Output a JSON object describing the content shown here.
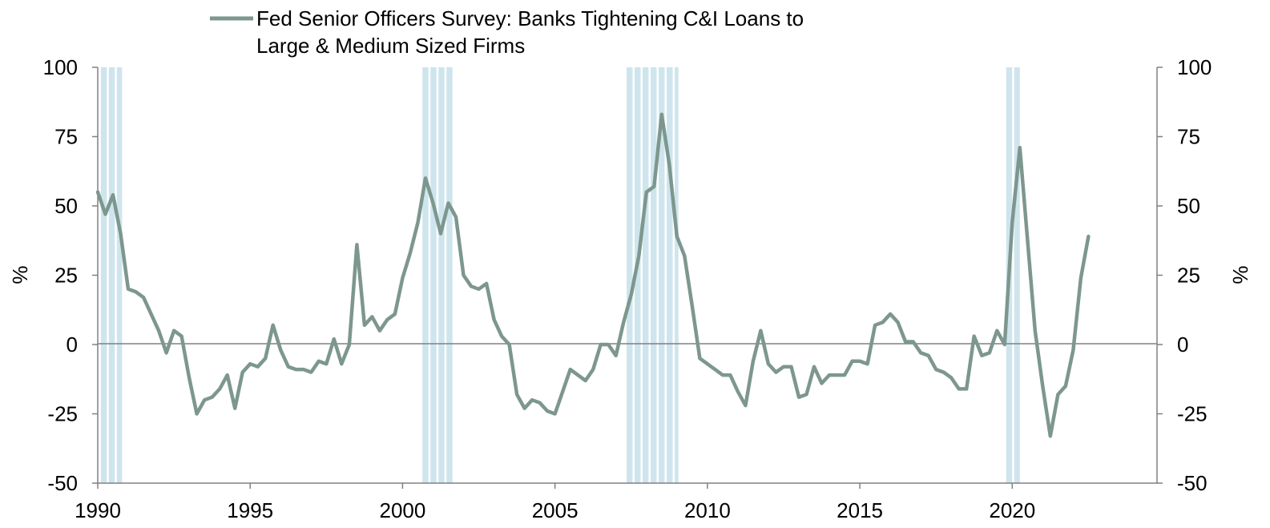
{
  "chart_data": {
    "type": "line",
    "title": "",
    "legend": {
      "entries": [
        "Fed Senior Officers Survey: Banks Tightening C&I Loans to",
        "Large & Medium Sized Firms"
      ],
      "placement": "top"
    },
    "left_axis": {
      "label": "%",
      "ticks": [
        "100",
        "75",
        "50",
        "25",
        "0",
        "-25",
        "-50"
      ]
    },
    "right_axis": {
      "label": "%",
      "ticks": [
        "100",
        "75",
        "50",
        "25",
        "0",
        "-25",
        "-50"
      ]
    },
    "xticks": [
      "1990",
      "1995",
      "2000",
      "2005",
      "2010",
      "2015",
      "2020"
    ],
    "xlim": [
      1990,
      2024.75
    ],
    "ylim": [
      -50,
      100
    ],
    "grid": false,
    "zero_line": true,
    "colors": {
      "series": "#7d978e",
      "shading": "#cfe5ee",
      "axis": "#808080"
    },
    "recessions": [
      {
        "start": 1990.1,
        "end": 1990.8
      },
      {
        "start": 2000.65,
        "end": 2001.65
      },
      {
        "start": 2007.35,
        "end": 2009.05
      },
      {
        "start": 2019.8,
        "end": 2020.25
      }
    ],
    "series": [
      {
        "name": "Fed Senior Officers Survey: Banks Tightening C&I Loans to Large & Medium Sized Firms",
        "points": [
          [
            1990.0,
            55
          ],
          [
            1990.25,
            47
          ],
          [
            1990.5,
            54
          ],
          [
            1990.75,
            40
          ],
          [
            1991.0,
            20
          ],
          [
            1991.25,
            19
          ],
          [
            1991.5,
            17
          ],
          [
            1991.75,
            11
          ],
          [
            1992.0,
            5
          ],
          [
            1992.25,
            -3
          ],
          [
            1992.5,
            5
          ],
          [
            1992.75,
            3
          ],
          [
            1993.0,
            -12
          ],
          [
            1993.25,
            -25
          ],
          [
            1993.5,
            -20
          ],
          [
            1993.75,
            -19
          ],
          [
            1994.0,
            -16
          ],
          [
            1994.25,
            -11
          ],
          [
            1994.5,
            -23
          ],
          [
            1994.75,
            -10
          ],
          [
            1995.0,
            -7
          ],
          [
            1995.25,
            -8
          ],
          [
            1995.5,
            -5
          ],
          [
            1995.75,
            7
          ],
          [
            1996.0,
            -2
          ],
          [
            1996.25,
            -8
          ],
          [
            1996.5,
            -9
          ],
          [
            1996.75,
            -9
          ],
          [
            1997.0,
            -10
          ],
          [
            1997.25,
            -6
          ],
          [
            1997.5,
            -7
          ],
          [
            1997.75,
            2
          ],
          [
            1998.0,
            -7
          ],
          [
            1998.25,
            0
          ],
          [
            1998.5,
            36
          ],
          [
            1998.75,
            7
          ],
          [
            1999.0,
            10
          ],
          [
            1999.25,
            5
          ],
          [
            1999.5,
            9
          ],
          [
            1999.75,
            11
          ],
          [
            2000.0,
            24
          ],
          [
            2000.25,
            33
          ],
          [
            2000.5,
            44
          ],
          [
            2000.75,
            60
          ],
          [
            2001.0,
            51
          ],
          [
            2001.25,
            40
          ],
          [
            2001.5,
            51
          ],
          [
            2001.75,
            46
          ],
          [
            2002.0,
            25
          ],
          [
            2002.25,
            21
          ],
          [
            2002.5,
            20
          ],
          [
            2002.75,
            22
          ],
          [
            2003.0,
            9
          ],
          [
            2003.25,
            3
          ],
          [
            2003.5,
            0
          ],
          [
            2003.75,
            -18
          ],
          [
            2004.0,
            -23
          ],
          [
            2004.25,
            -20
          ],
          [
            2004.5,
            -21
          ],
          [
            2004.75,
            -24
          ],
          [
            2005.0,
            -25
          ],
          [
            2005.25,
            -17
          ],
          [
            2005.5,
            -9
          ],
          [
            2005.75,
            -11
          ],
          [
            2006.0,
            -13
          ],
          [
            2006.25,
            -9
          ],
          [
            2006.5,
            0
          ],
          [
            2006.75,
            0
          ],
          [
            2007.0,
            -4
          ],
          [
            2007.25,
            8
          ],
          [
            2007.5,
            18
          ],
          [
            2007.75,
            32
          ],
          [
            2008.0,
            55
          ],
          [
            2008.25,
            57
          ],
          [
            2008.5,
            83
          ],
          [
            2008.75,
            65
          ],
          [
            2009.0,
            39
          ],
          [
            2009.25,
            32
          ],
          [
            2009.5,
            14
          ],
          [
            2009.75,
            -5
          ],
          [
            2010.0,
            -7
          ],
          [
            2010.25,
            -9
          ],
          [
            2010.5,
            -11
          ],
          [
            2010.75,
            -11
          ],
          [
            2011.0,
            -17
          ],
          [
            2011.25,
            -22
          ],
          [
            2011.5,
            -6
          ],
          [
            2011.75,
            5
          ],
          [
            2012.0,
            -7
          ],
          [
            2012.25,
            -10
          ],
          [
            2012.5,
            -8
          ],
          [
            2012.75,
            -8
          ],
          [
            2013.0,
            -19
          ],
          [
            2013.25,
            -18
          ],
          [
            2013.5,
            -8
          ],
          [
            2013.75,
            -14
          ],
          [
            2014.0,
            -11
          ],
          [
            2014.25,
            -11
          ],
          [
            2014.5,
            -11
          ],
          [
            2014.75,
            -6
          ],
          [
            2015.0,
            -6
          ],
          [
            2015.25,
            -7
          ],
          [
            2015.5,
            7
          ],
          [
            2015.75,
            8
          ],
          [
            2016.0,
            11
          ],
          [
            2016.25,
            8
          ],
          [
            2016.5,
            1
          ],
          [
            2016.75,
            1
          ],
          [
            2017.0,
            -3
          ],
          [
            2017.25,
            -4
          ],
          [
            2017.5,
            -9
          ],
          [
            2017.75,
            -10
          ],
          [
            2018.0,
            -12
          ],
          [
            2018.25,
            -16
          ],
          [
            2018.5,
            -16
          ],
          [
            2018.75,
            3
          ],
          [
            2019.0,
            -4
          ],
          [
            2019.25,
            -3
          ],
          [
            2019.5,
            5
          ],
          [
            2019.75,
            0
          ],
          [
            2020.0,
            44
          ],
          [
            2020.25,
            71
          ],
          [
            2020.5,
            38
          ],
          [
            2020.75,
            5
          ],
          [
            2021.0,
            -15
          ],
          [
            2021.25,
            -33
          ],
          [
            2021.5,
            -18
          ],
          [
            2021.75,
            -15
          ],
          [
            2022.0,
            -2
          ],
          [
            2022.25,
            24
          ],
          [
            2022.5,
            39
          ]
        ]
      }
    ]
  }
}
